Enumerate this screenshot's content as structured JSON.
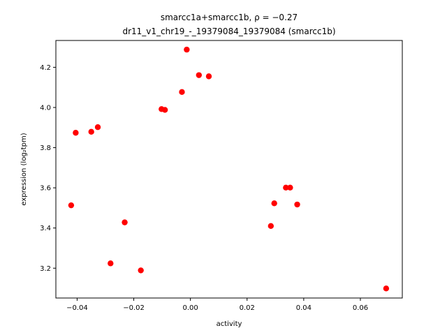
{
  "chart_data": {
    "type": "scatter",
    "title": "smarcc1a+smarcc1b, ρ = −0.27",
    "subtitle": "dr11_v1_chr19_-_19379084_19379084 (smarcc1b)",
    "xlabel": "activity",
    "ylabel": "expression (log₂tpm)",
    "xlim": [
      -0.0475,
      0.0748
    ],
    "ylim": [
      3.0515,
      4.3335
    ],
    "xticks": [
      -0.04,
      -0.02,
      0.0,
      0.02,
      0.04,
      0.06
    ],
    "xtick_labels": [
      "−0.04",
      "−0.02",
      "0.00",
      "0.02",
      "0.04",
      "0.06"
    ],
    "yticks": [
      3.2,
      3.4,
      3.6,
      3.8,
      4.0,
      4.2
    ],
    "ytick_labels": [
      "3.2",
      "3.4",
      "3.6",
      "3.8",
      "4.0",
      "4.2"
    ],
    "grid": false,
    "marker_color": "#ff0000",
    "points": [
      {
        "x": -0.0421,
        "y": 3.513
      },
      {
        "x": -0.0405,
        "y": 3.874
      },
      {
        "x": -0.035,
        "y": 3.879
      },
      {
        "x": -0.0327,
        "y": 3.902
      },
      {
        "x": -0.0282,
        "y": 3.224
      },
      {
        "x": -0.0232,
        "y": 3.428
      },
      {
        "x": -0.0175,
        "y": 3.189
      },
      {
        "x": -0.0102,
        "y": 3.992
      },
      {
        "x": -0.009,
        "y": 3.988
      },
      {
        "x": -0.003,
        "y": 4.077
      },
      {
        "x": -0.0013,
        "y": 4.288
      },
      {
        "x": 0.003,
        "y": 4.161
      },
      {
        "x": 0.0065,
        "y": 4.155
      },
      {
        "x": 0.0284,
        "y": 3.41
      },
      {
        "x": 0.0296,
        "y": 3.523
      },
      {
        "x": 0.0337,
        "y": 3.601
      },
      {
        "x": 0.0352,
        "y": 3.601
      },
      {
        "x": 0.0377,
        "y": 3.517
      },
      {
        "x": 0.0691,
        "y": 3.099
      }
    ]
  }
}
